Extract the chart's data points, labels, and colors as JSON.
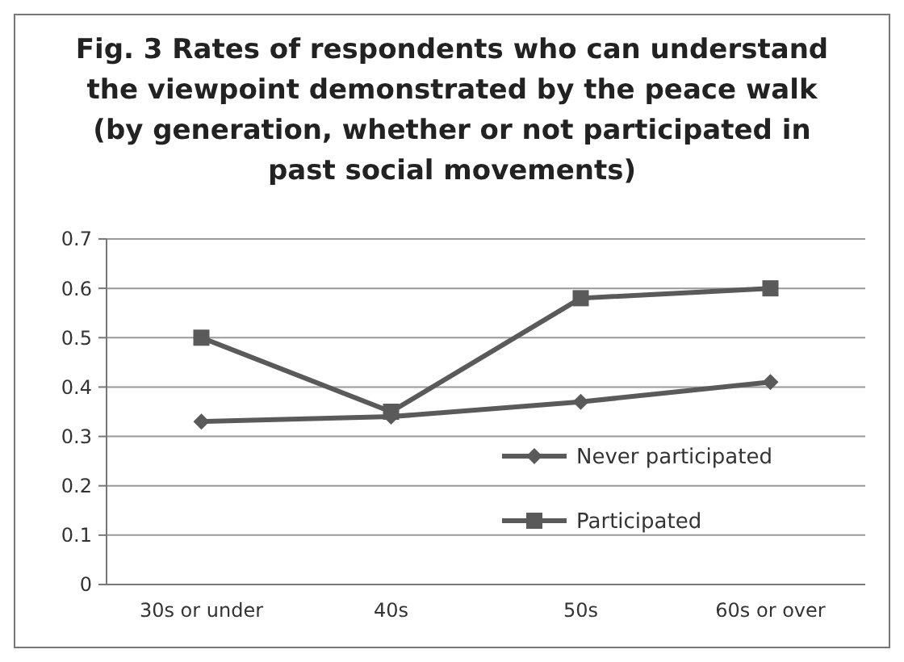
{
  "chart_data": {
    "type": "line",
    "title": "Fig. 3 Rates of respondents who can understand\nthe viewpoint demonstrated by the peace walk\n(by generation, whether or not participated in\npast social movements)",
    "categories": [
      "30s or under",
      "40s",
      "50s",
      "60s or over"
    ],
    "series": [
      {
        "name": "Never participated",
        "color": "#5a5a5a",
        "marker": "diamond",
        "values": [
          0.33,
          0.34,
          0.37,
          0.41
        ]
      },
      {
        "name": "Participated",
        "color": "#5a5a5a",
        "marker": "square",
        "values": [
          0.5,
          0.35,
          0.58,
          0.6
        ]
      }
    ],
    "ylim": [
      0,
      0.7
    ],
    "yticks": [
      0,
      0.1,
      0.2,
      0.3,
      0.4,
      0.5,
      0.6,
      0.7
    ],
    "grid": "y",
    "legend": "bottom right",
    "line_style": "solid"
  }
}
